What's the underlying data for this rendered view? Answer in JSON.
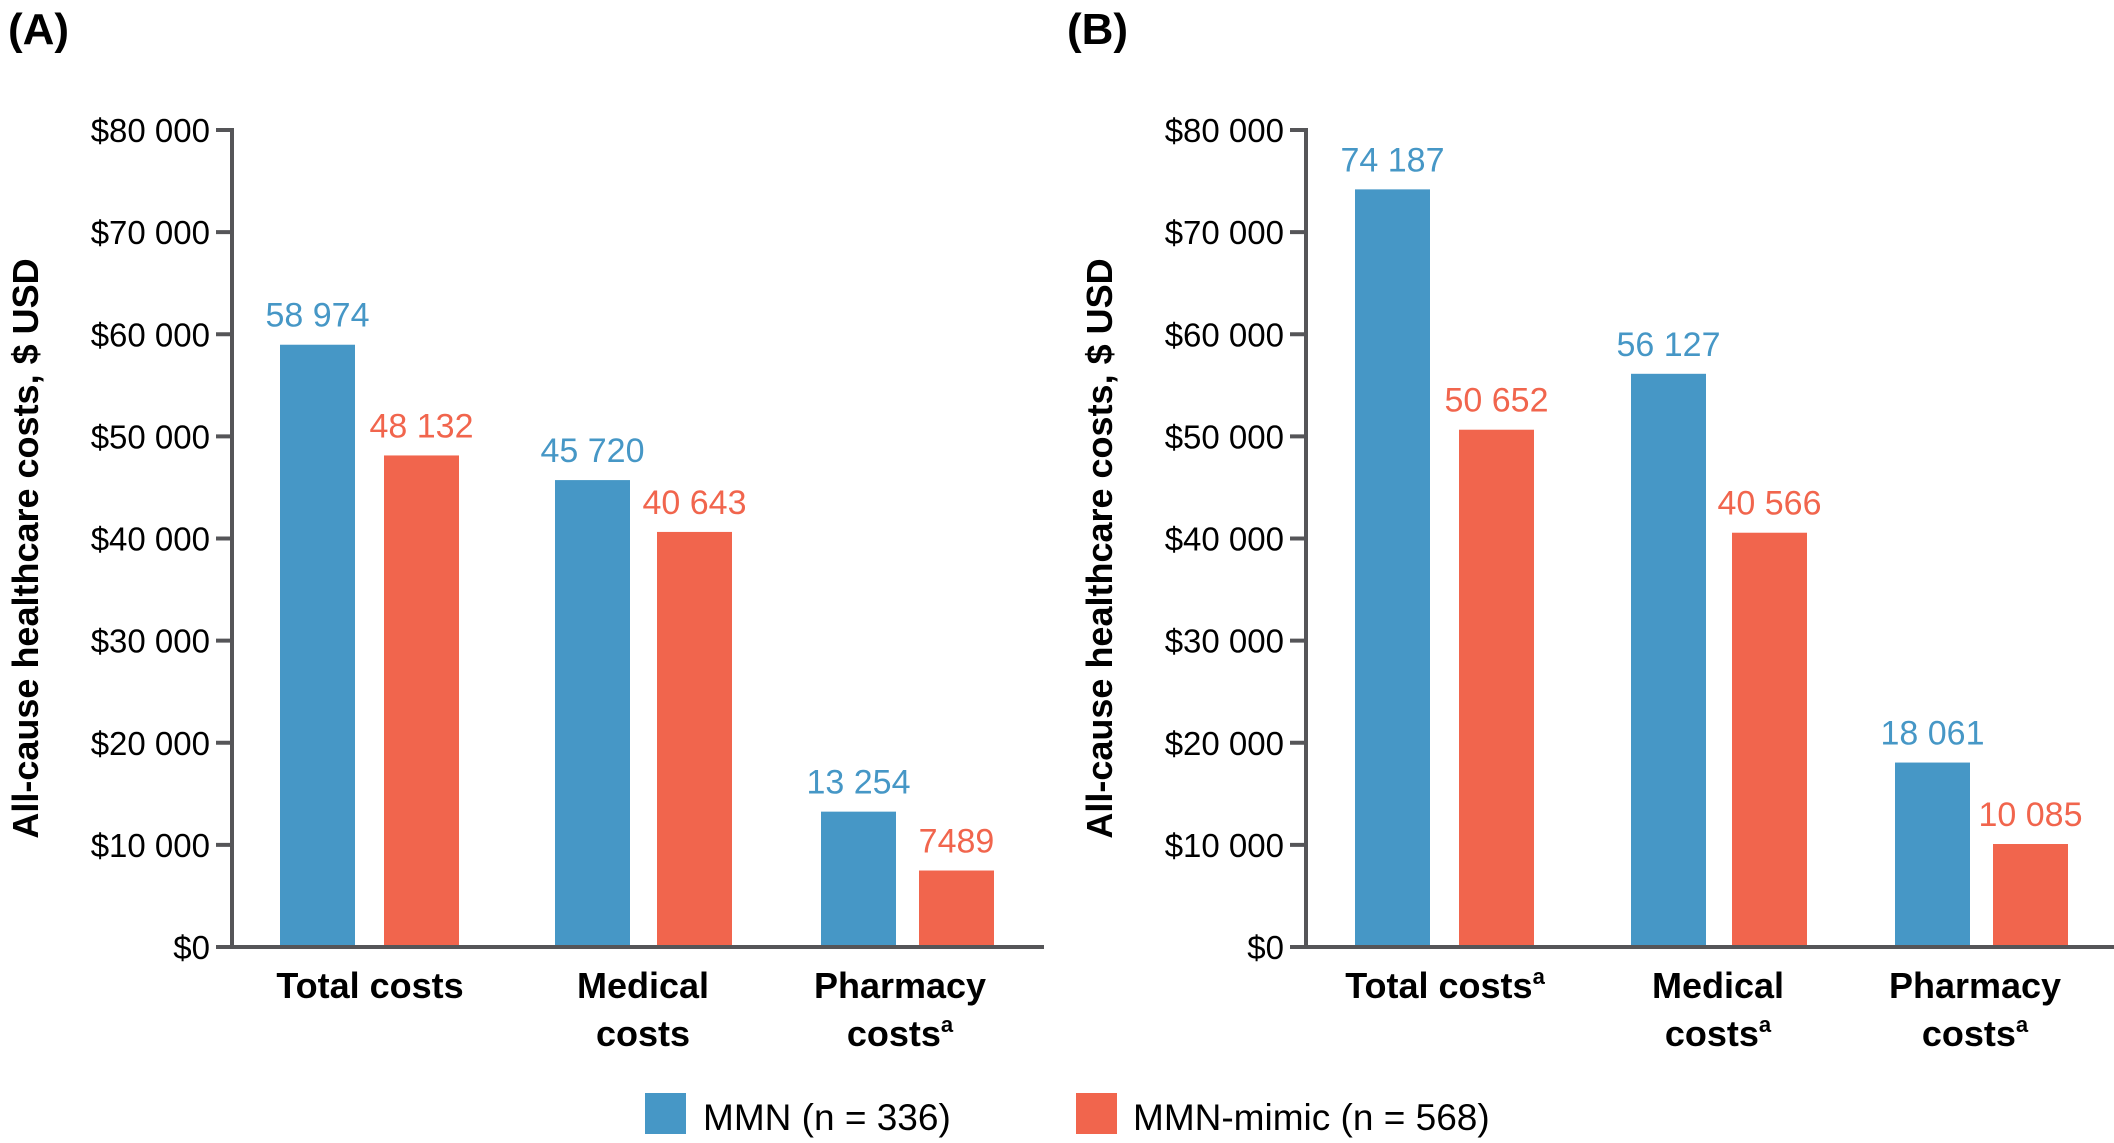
{
  "figure": {
    "legend": [
      {
        "label": "MMN (n = 336)",
        "color": "#4697C6"
      },
      {
        "label": "MMN-mimic (n = 568)",
        "color": "#F1654D"
      }
    ]
  },
  "chart_data": [
    {
      "type": "bar",
      "panel_label": "(A)",
      "title": "",
      "xlabel": "",
      "ylabel": "All-cause healthcare costs, $ USD",
      "ylim": [
        0,
        80000
      ],
      "yticks": [
        0,
        10000,
        20000,
        30000,
        40000,
        50000,
        60000,
        70000,
        80000
      ],
      "ytick_labels": [
        "$0",
        "$10 000",
        "$20 000",
        "$30 000",
        "$40 000",
        "$50 000",
        "$60 000",
        "$70 000",
        "$80 000"
      ],
      "grid": false,
      "legend_position": "bottom-center",
      "categories": [
        {
          "lines": [
            "Total costs"
          ],
          "superscript": ""
        },
        {
          "lines": [
            "Medical",
            "costs"
          ],
          "superscript": ""
        },
        {
          "lines": [
            "Pharmacy",
            "costs"
          ],
          "superscript": "a"
        }
      ],
      "series": [
        {
          "name": "MMN (n = 336)",
          "color": "#4697C6",
          "values": [
            58974,
            45720,
            13254
          ],
          "labels": [
            "58 974",
            "45 720",
            "13 254"
          ]
        },
        {
          "name": "MMN-mimic (n = 568)",
          "color": "#F1654D",
          "values": [
            48132,
            40643,
            7489
          ],
          "labels": [
            "48 132",
            "40 643",
            "7489"
          ]
        }
      ]
    },
    {
      "type": "bar",
      "panel_label": "(B)",
      "title": "",
      "xlabel": "",
      "ylabel": "All-cause healthcare costs, $ USD",
      "ylim": [
        0,
        80000
      ],
      "yticks": [
        0,
        10000,
        20000,
        30000,
        40000,
        50000,
        60000,
        70000,
        80000
      ],
      "ytick_labels": [
        "$0",
        "$10 000",
        "$20 000",
        "$30 000",
        "$40 000",
        "$50 000",
        "$60 000",
        "$70 000",
        "$80 000"
      ],
      "grid": false,
      "legend_position": "bottom-center",
      "categories": [
        {
          "lines": [
            "Total costs"
          ],
          "superscript": "a"
        },
        {
          "lines": [
            "Medical",
            "costs"
          ],
          "superscript": "a"
        },
        {
          "lines": [
            "Pharmacy",
            "costs"
          ],
          "superscript": "a"
        }
      ],
      "series": [
        {
          "name": "MMN (n = 336)",
          "color": "#4697C6",
          "values": [
            74187,
            56127,
            18061
          ],
          "labels": [
            "74 187",
            "56 127",
            "18 061"
          ]
        },
        {
          "name": "MMN-mimic (n = 568)",
          "color": "#F1654D",
          "values": [
            50652,
            40566,
            10085
          ],
          "labels": [
            "50 652",
            "40 566",
            "10 085"
          ]
        }
      ]
    }
  ]
}
